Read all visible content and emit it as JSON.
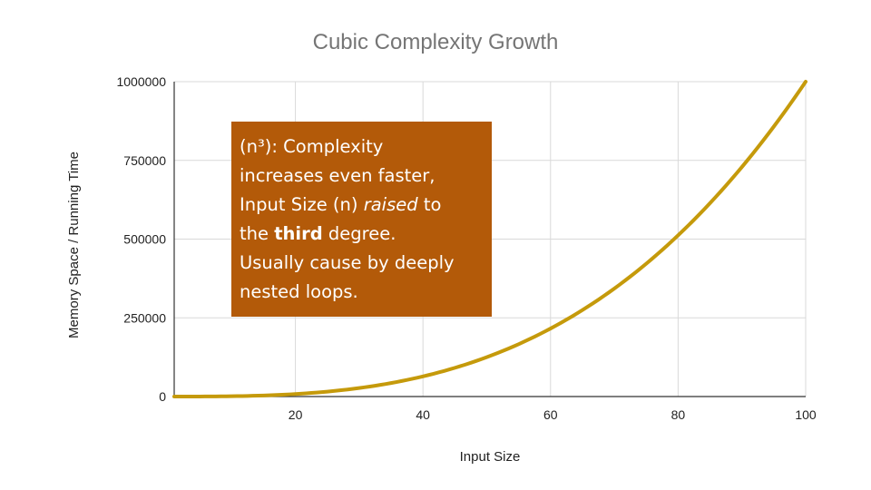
{
  "chart_data": {
    "type": "line",
    "title": "Cubic Complexity Growth",
    "xlabel": "Input Size",
    "ylabel": "Memory Space / Running Time",
    "xlim": [
      1,
      100
    ],
    "ylim": [
      0,
      1000000
    ],
    "x_ticks": [
      20,
      40,
      60,
      80,
      100
    ],
    "y_ticks": [
      0,
      250000,
      500000,
      750000,
      1000000
    ],
    "x_tick_labels": [
      "20",
      "40",
      "60",
      "80",
      "100"
    ],
    "y_tick_labels": [
      "0",
      "250000",
      "500000",
      "750000",
      "1000000"
    ],
    "grid": true,
    "legend": "none",
    "series": [
      {
        "function": "n^3",
        "color": "#c59a0b",
        "x": [
          1,
          5,
          10,
          15,
          20,
          25,
          30,
          35,
          40,
          45,
          50,
          55,
          60,
          65,
          70,
          75,
          80,
          85,
          90,
          95,
          100
        ],
        "values": [
          1,
          125,
          1000,
          3375,
          8000,
          15625,
          27000,
          42875,
          64000,
          91125,
          125000,
          166375,
          216000,
          274625,
          343000,
          421875,
          512000,
          614125,
          729000,
          857375,
          1000000
        ]
      }
    ],
    "annotation": {
      "background": "#b35a09",
      "text_color": "#ffffff",
      "parts": {
        "line1": "(n³): Complexity",
        "line2": "increases even faster,",
        "line3_a": "Input Size (n) ",
        "line3_b": "raised",
        "line3_c": " to",
        "line4_a": "the ",
        "line4_b": "third",
        "line4_c": " degree.",
        "line5": "Usually cause by deeply",
        "line6": "nested loops."
      }
    }
  },
  "colors": {
    "grid": "#d9d9d9",
    "axis": "#333333",
    "title": "#757575",
    "tick_text": "#222222"
  }
}
